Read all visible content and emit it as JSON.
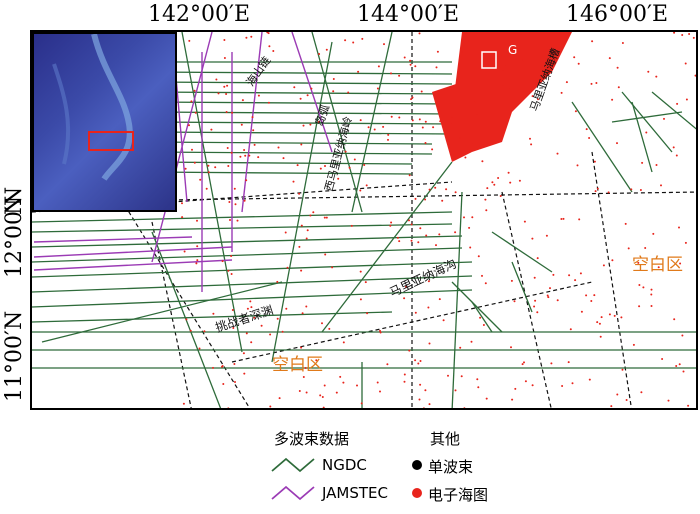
{
  "axes": {
    "lon_labels": [
      "142°00′E",
      "144°00′E",
      "146°00′E"
    ],
    "lat_labels": [
      "12°00′N",
      "11°00′N"
    ],
    "lat_upper_partial": "N"
  },
  "map_labels": {
    "mariana_trough": "马里亚纳海沟",
    "challenger_deep": "挑战者深渊",
    "blank_area_left": "空白区",
    "blank_area_right": "空白区",
    "inset_marker": "G",
    "ridge_labels": [
      "海山链",
      "岛弧",
      "西马里亚纳海岭",
      "马里亚纳海槽"
    ]
  },
  "legend": {
    "multibeam_title": "多波束数据",
    "other_title": "其他",
    "ngdc_label": "NGDC",
    "jamstec_label": "JAMSTEC",
    "singlebeam_label": "单波束",
    "chart_label": "电子海图"
  },
  "colors": {
    "ngdc": "#2e6b3a",
    "jamstec": "#9b3bb5",
    "singlebeam": "#000000",
    "chart": "#e8241c",
    "blank_label": "#e07a1a",
    "inset_box": "#e8241c"
  }
}
